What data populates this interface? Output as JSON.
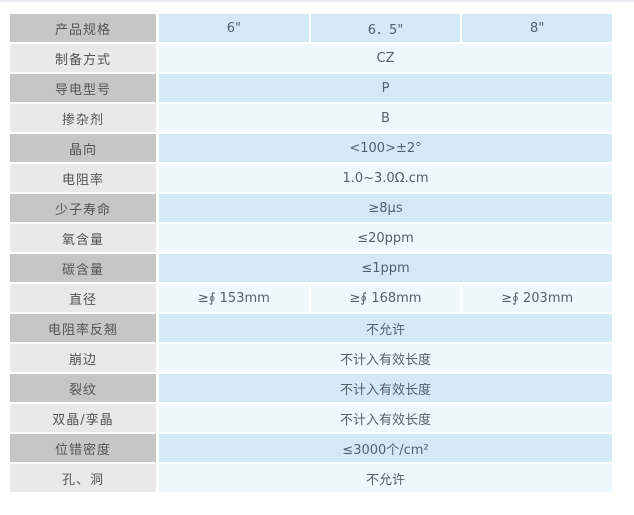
{
  "page": {
    "top_rule_color": "#e8eef2",
    "background": "#ffffff"
  },
  "colors": {
    "label_dark": "#c6c6c6",
    "label_light": "#e9e9e9",
    "value_dark": "#d3eaf6",
    "value_light": "#edf7fc",
    "label_text": "#555555",
    "value_text": "#54626c"
  },
  "table": {
    "rows": [
      {
        "label": "产品规格",
        "values": [
          "6\"",
          "6．5\"",
          "8\""
        ]
      },
      {
        "label": "制备方式",
        "values": [
          "CZ"
        ]
      },
      {
        "label": "导电型号",
        "values": [
          "P"
        ]
      },
      {
        "label": "掺杂剂",
        "values": [
          "B"
        ]
      },
      {
        "label": "晶向",
        "values": [
          "<100>±2°"
        ]
      },
      {
        "label": "电阻率",
        "values": [
          "1.0~3.0Ω.cm"
        ]
      },
      {
        "label": "少子寿命",
        "values": [
          "≥8μs"
        ]
      },
      {
        "label": "氧含量",
        "values": [
          "≤20ppm"
        ]
      },
      {
        "label": "碳含量",
        "values": [
          "≤1ppm"
        ]
      },
      {
        "label": "直径",
        "values": [
          "≥∮ 153mm",
          "≥∮ 168mm",
          "≥∮ 203mm"
        ]
      },
      {
        "label": "电阻率反翘",
        "values": [
          "不允许"
        ]
      },
      {
        "label": "崩边",
        "values": [
          "不计入有效长度"
        ]
      },
      {
        "label": "裂纹",
        "values": [
          "不计入有效长度"
        ]
      },
      {
        "label": "双晶/孪晶",
        "values": [
          "不计入有效长度"
        ]
      },
      {
        "label": "位错密度",
        "values": [
          "≤3000个/cm²"
        ]
      },
      {
        "label": "孔、洞",
        "values": [
          "不允许"
        ]
      }
    ]
  }
}
